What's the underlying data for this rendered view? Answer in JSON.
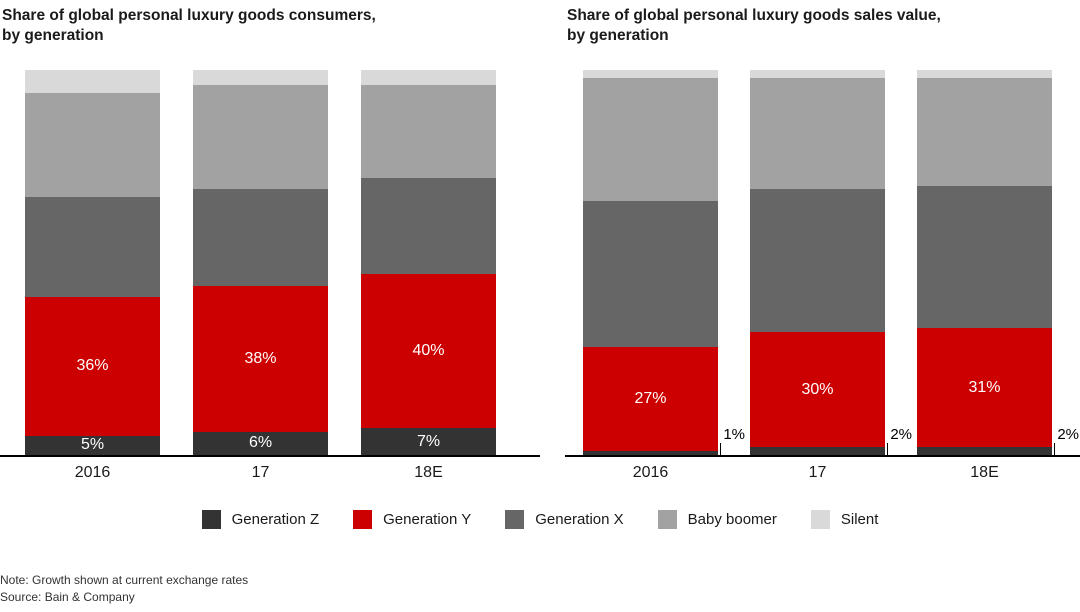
{
  "chart_data": [
    {
      "type": "bar",
      "stacked": true,
      "title": "Share of global personal luxury goods consumers,\nby generation",
      "categories": [
        "2016",
        "17",
        "18E"
      ],
      "unit": "%",
      "ylim": [
        0,
        100
      ],
      "xlabel": "",
      "ylabel": "",
      "grid": false,
      "legend_position": "bottom",
      "series": [
        {
          "name": "Generation Z",
          "color": "#333333",
          "labels": "inside",
          "values": [
            5,
            6,
            7
          ]
        },
        {
          "name": "Generation Y",
          "color": "#cc0000",
          "labels": "inside",
          "values": [
            36,
            38,
            40
          ]
        },
        {
          "name": "Generation X",
          "color": "#666666",
          "labels": "none",
          "values": [
            26,
            25,
            25
          ]
        },
        {
          "name": "Baby boomer",
          "color": "#a2a2a2",
          "labels": "none",
          "values": [
            27,
            27,
            24
          ]
        },
        {
          "name": "Silent",
          "color": "#d9d9d9",
          "labels": "none",
          "values": [
            6,
            4,
            4
          ]
        }
      ]
    },
    {
      "type": "bar",
      "stacked": true,
      "title": "Share of global personal luxury goods sales value,\nby generation",
      "categories": [
        "2016",
        "17",
        "18E"
      ],
      "unit": "%",
      "ylim": [
        0,
        100
      ],
      "xlabel": "",
      "ylabel": "",
      "grid": false,
      "legend_position": "bottom",
      "series": [
        {
          "name": "Generation Z",
          "color": "#333333",
          "labels": "callout",
          "values": [
            1,
            2,
            2
          ]
        },
        {
          "name": "Generation Y",
          "color": "#cc0000",
          "labels": "inside",
          "values": [
            27,
            30,
            31
          ]
        },
        {
          "name": "Generation X",
          "color": "#666666",
          "labels": "none",
          "values": [
            38,
            37,
            37
          ]
        },
        {
          "name": "Baby boomer",
          "color": "#a2a2a2",
          "labels": "none",
          "values": [
            32,
            29,
            28
          ]
        },
        {
          "name": "Silent",
          "color": "#d9d9d9",
          "labels": "none",
          "values": [
            2,
            2,
            2
          ]
        }
      ]
    }
  ],
  "legend": {
    "items": [
      {
        "label": "Generation Z",
        "color": "#333333"
      },
      {
        "label": "Generation Y",
        "color": "#cc0000"
      },
      {
        "label": "Generation X",
        "color": "#666666"
      },
      {
        "label": "Baby boomer",
        "color": "#a2a2a2"
      },
      {
        "label": "Silent",
        "color": "#d9d9d9"
      }
    ]
  },
  "notes": {
    "note": "Note: Growth shown at current exchange rates",
    "source": "Source: Bain & Company"
  }
}
